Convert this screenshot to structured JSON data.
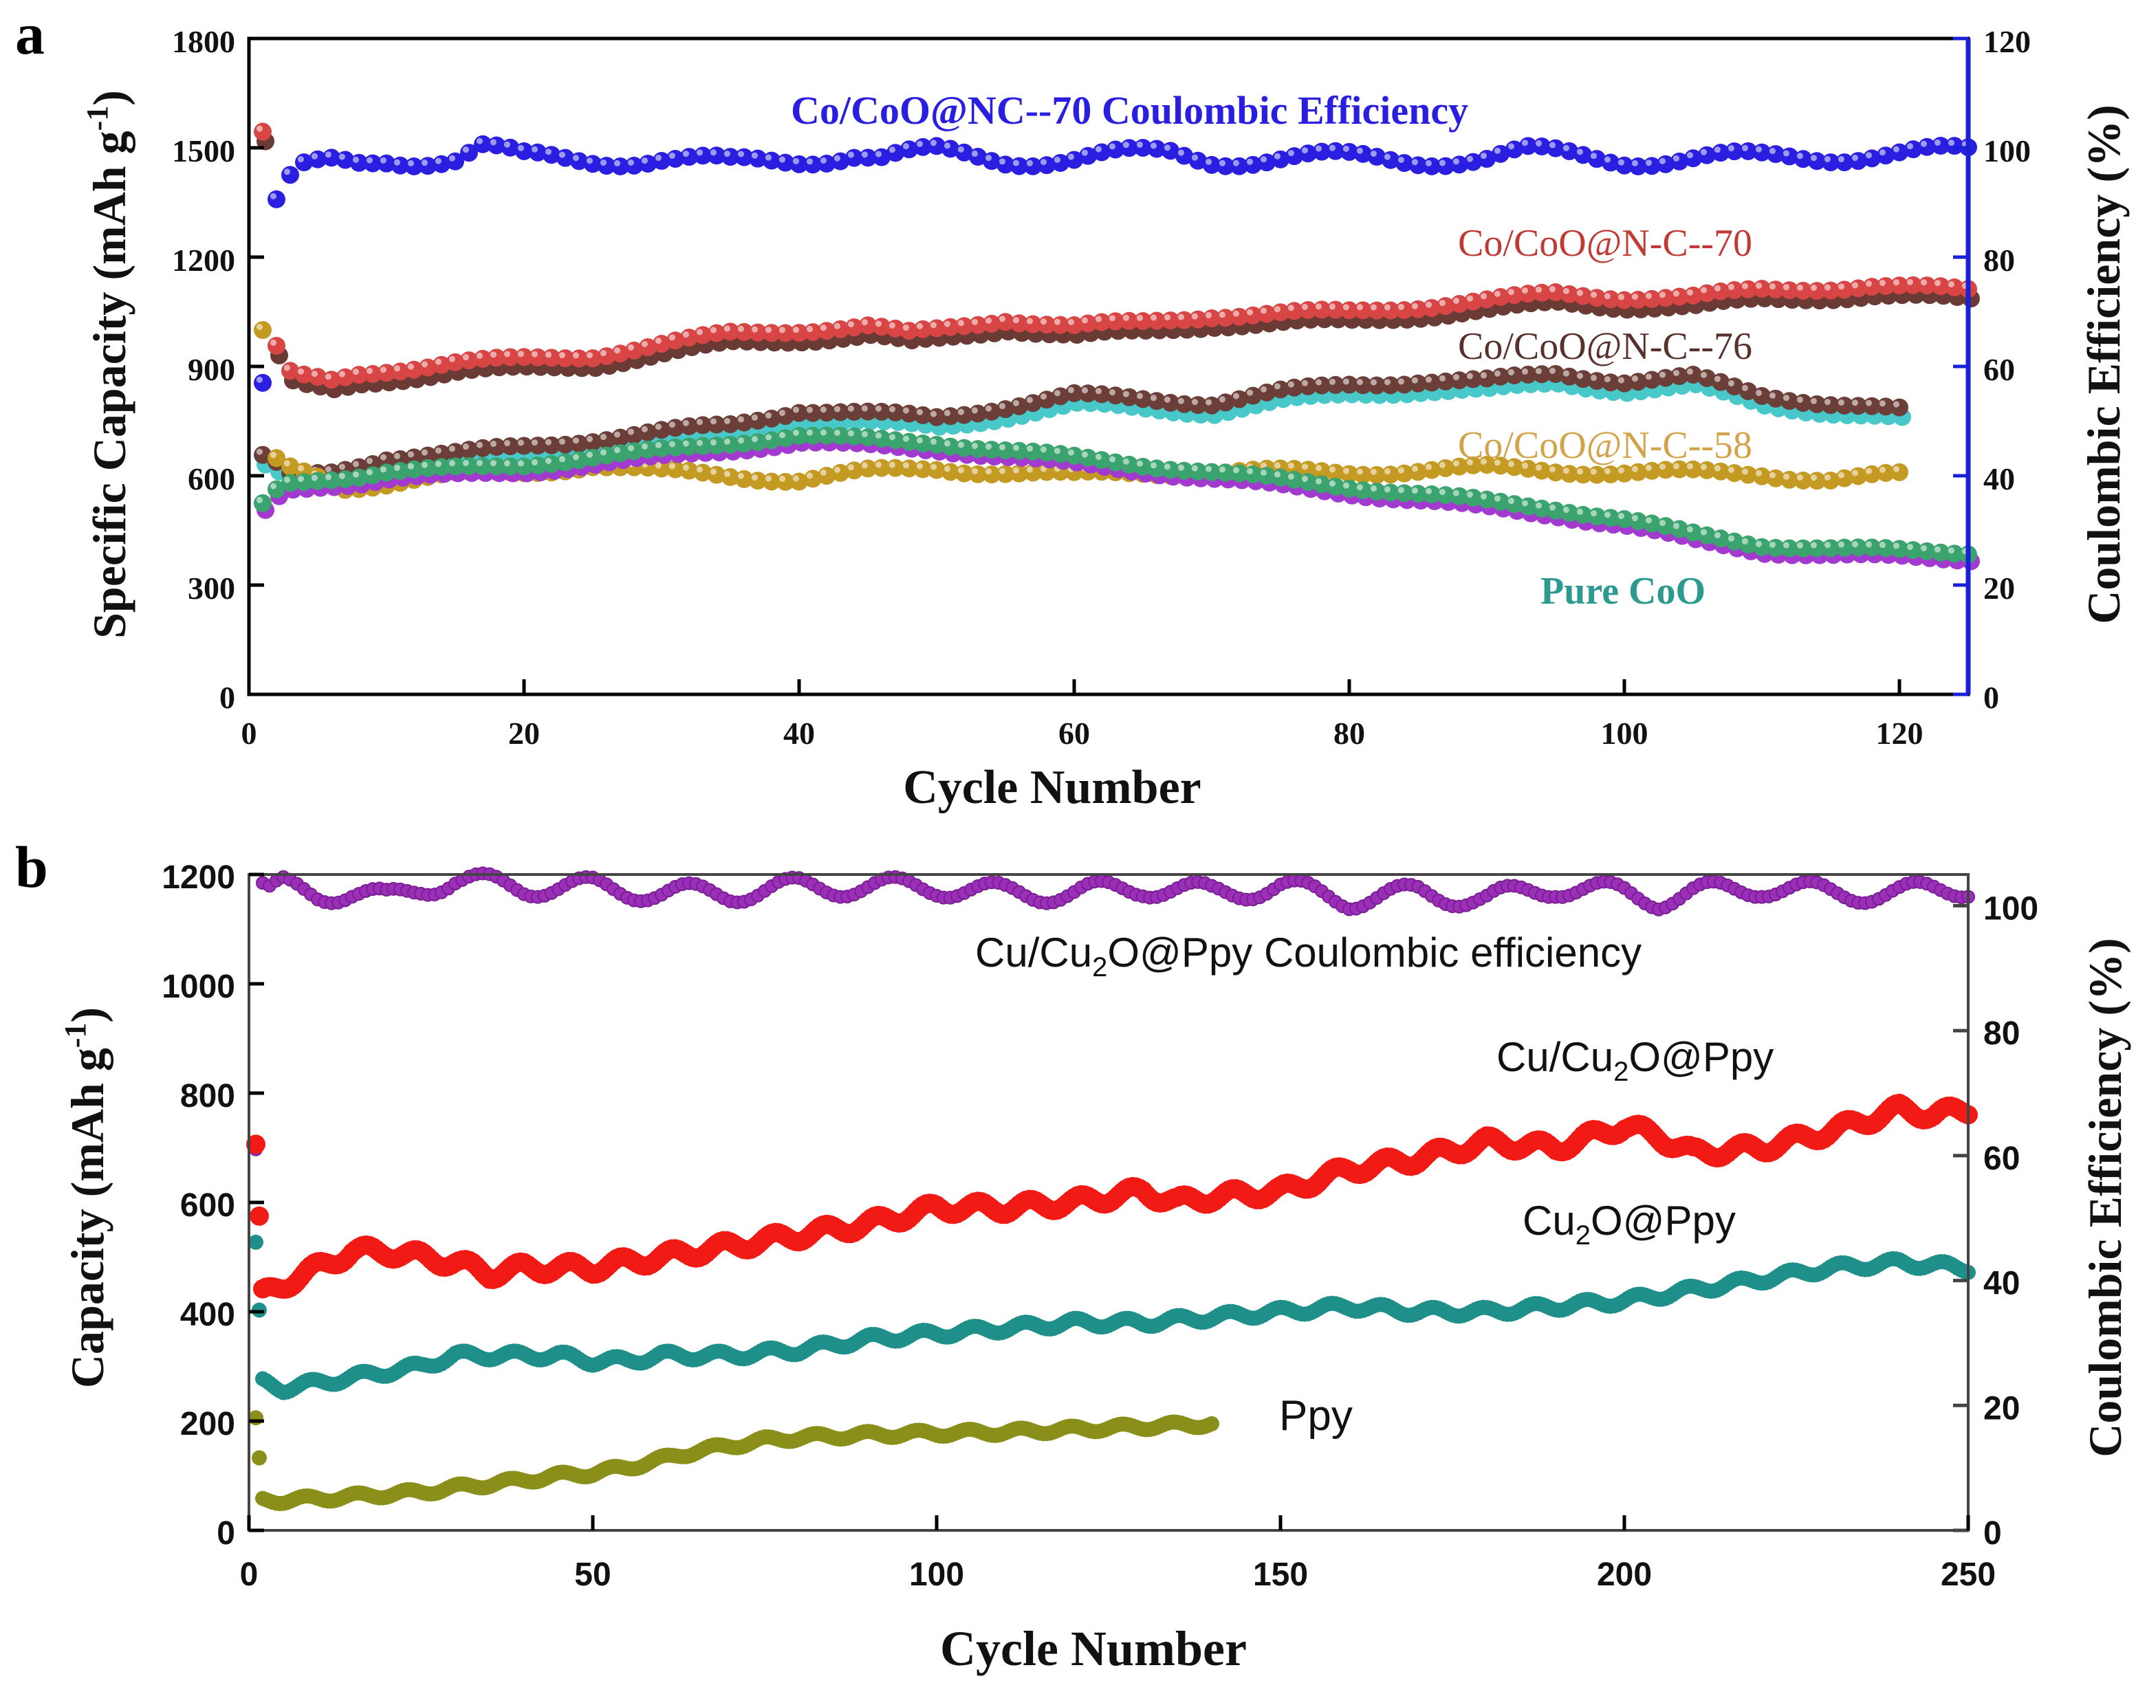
{
  "chart_data": [
    {
      "panel_label": "a",
      "type": "scatter",
      "xlabel": "Cycle Number",
      "ylabel_left": "Specific Capacity (mAh g",
      "ylabel_left_sup": "-1",
      "ylabel_left_end": ")",
      "ylabel_right": "Coulombic Efficiency (%)",
      "xlim": [
        0,
        125
      ],
      "ylim_left": [
        0,
        1800
      ],
      "ylim_right": [
        0,
        120
      ],
      "xticks": [
        0,
        20,
        40,
        60,
        80,
        100,
        120
      ],
      "xtick_labels": [
        "0",
        "20",
        "40",
        "60",
        "80",
        "100",
        "120"
      ],
      "yticks_left": [
        0,
        300,
        600,
        900,
        1200,
        1500,
        1800
      ],
      "ytick_labels_left": [
        "0",
        "300",
        "600",
        "900",
        "1200",
        "1500",
        "1800"
      ],
      "yticks_right": [
        0,
        20,
        40,
        60,
        80,
        100,
        120
      ],
      "ytick_labels_right": [
        "0",
        "20",
        "40",
        "60",
        "80",
        "100",
        "120"
      ],
      "annotations": {
        "ce": "Co/CoO@NC--70  Coulombic Efficiency",
        "s70": "Co/CoO@N-C--70",
        "s76": "Co/CoO@N-C--76",
        "s58": "Co/CoO@N-C--58",
        "pure": "Pure CoO"
      },
      "colors": {
        "ce": "#2a1fe0",
        "s70": "#d84545",
        "s70b": "#6a3a34",
        "s76": "#6b3e38",
        "s76b": "#48c8c8",
        "s58": "#c49a22",
        "pure": "#3aa36e",
        "pureb": "#a23ad0",
        "axis_right": "#1a20d8",
        "ann_ce": "#2a1fe0",
        "ann_70": "#c03a35",
        "ann_76": "#5a302c",
        "ann_58": "#d2a34a",
        "ann_pure": "#2c9a8e"
      },
      "series": [
        {
          "name": "Co/CoO@NC--70 Coulombic Efficiency",
          "axis": "right",
          "x": [
            1,
            2,
            3,
            4,
            6,
            8,
            10,
            15,
            17,
            20,
            25,
            30,
            35,
            40,
            44,
            46,
            50,
            55,
            60,
            67,
            70,
            80,
            90,
            93,
            100,
            110,
            118,
            125
          ],
          "y": [
            57,
            90,
            94,
            96,
            97,
            97,
            98,
            98,
            100,
            98,
            98,
            98,
            97,
            98,
            99,
            98,
            99,
            98,
            98,
            99,
            98,
            98,
            98,
            99,
            98,
            98,
            99,
            99
          ]
        },
        {
          "name": "Co/CoO@N-C--70",
          "axis": "left",
          "x": [
            1,
            2,
            3,
            4,
            6,
            8,
            10,
            15,
            20,
            25,
            30,
            35,
            40,
            45,
            48,
            50,
            55,
            60,
            65,
            70,
            80,
            90,
            95,
            100,
            105,
            110,
            118,
            125
          ],
          "y": [
            1540,
            950,
            880,
            870,
            860,
            880,
            890,
            910,
            920,
            930,
            960,
            990,
            1000,
            1010,
            990,
            1000,
            1030,
            1010,
            1020,
            1040,
            1050,
            1080,
            1100,
            1090,
            1090,
            1110,
            1120,
            1110
          ]
        },
        {
          "name": "Co/CoO@N-C--76",
          "axis": "left",
          "x": [
            1,
            2,
            3,
            4,
            6,
            8,
            10,
            15,
            20,
            25,
            30,
            35,
            40,
            45,
            50,
            55,
            60,
            65,
            70,
            75,
            80,
            85,
            90,
            95,
            100,
            105,
            110,
            115,
            120
          ],
          "y": [
            650,
            630,
            600,
            600,
            610,
            630,
            650,
            660,
            680,
            700,
            720,
            740,
            780,
            770,
            760,
            790,
            820,
            810,
            800,
            830,
            850,
            860,
            860,
            880,
            860,
            870,
            820,
            800,
            780
          ]
        },
        {
          "name": "Co/CoO@N-C--58",
          "axis": "left",
          "x": [
            1,
            2,
            3,
            5,
            7,
            10,
            15,
            20,
            25,
            30,
            35,
            40,
            45,
            50,
            55,
            60,
            65,
            70,
            80,
            90,
            100,
            110,
            115,
            120
          ],
          "y": [
            990,
            640,
            620,
            600,
            570,
            580,
            600,
            610,
            630,
            610,
            600,
            590,
            610,
            620,
            610,
            600,
            610,
            610,
            610,
            620,
            610,
            605,
            590,
            600
          ]
        },
        {
          "name": "Pure CoO",
          "axis": "left",
          "x": [
            1,
            2,
            3,
            5,
            8,
            10,
            15,
            20,
            25,
            30,
            35,
            40,
            45,
            50,
            55,
            60,
            65,
            70,
            75,
            80,
            85,
            90,
            95,
            100,
            105,
            110,
            115,
            120,
            125
          ],
          "y": [
            520,
            560,
            580,
            590,
            600,
            610,
            620,
            630,
            650,
            670,
            690,
            710,
            700,
            690,
            670,
            650,
            630,
            610,
            590,
            570,
            550,
            530,
            510,
            480,
            440,
            410,
            400,
            395,
            390
          ]
        }
      ]
    },
    {
      "panel_label": "b",
      "type": "scatter",
      "xlabel": "Cycle Number",
      "ylabel_left": "Capacity (mAh g",
      "ylabel_left_sup": "-1",
      "ylabel_left_end": ")",
      "ylabel_right": "Coulombic Efficiency (%)",
      "xlim": [
        0,
        250
      ],
      "ylim_left": [
        0,
        1200
      ],
      "ylim_right": [
        0,
        105
      ],
      "xticks": [
        0,
        50,
        100,
        150,
        200,
        250
      ],
      "xtick_labels": [
        "0",
        "50",
        "100",
        "150",
        "200",
        "250"
      ],
      "yticks_left": [
        0,
        200,
        400,
        600,
        800,
        1000,
        1200
      ],
      "ytick_labels_left": [
        "0",
        "200",
        "400",
        "600",
        "800",
        "1000",
        "1200"
      ],
      "yticks_right": [
        0,
        20,
        40,
        60,
        80,
        100
      ],
      "ytick_labels_right": [
        "0",
        "20",
        "40",
        "60",
        "80",
        "100"
      ],
      "annotations": {
        "ce_pre": "Cu/Cu",
        "ce_sub": "2",
        "ce_post": "O@Ppy  Coulombic efficiency",
        "cu_pre": "Cu/Cu",
        "cu_sub": "2",
        "cu_post": "O@Ppy",
        "cu2o_pre": "Cu",
        "cu2o_sub": "2",
        "cu2o_post": "O@Ppy",
        "ppy": "Ppy"
      },
      "colors": {
        "ce": "#9b2fb8",
        "cu": "#f21a14",
        "cu2o": "#1f8f8a",
        "ppy": "#8a8f1a"
      },
      "series": [
        {
          "name": "Cu/Cu2O@Ppy Coulombic efficiency",
          "axis": "right",
          "x": [
            1,
            2,
            3,
            5,
            10,
            15,
            20,
            25,
            30,
            40,
            50,
            60,
            70,
            80,
            90,
            100,
            110,
            120,
            130,
            140,
            150,
            160,
            170,
            180,
            190,
            200,
            205,
            210,
            220,
            230,
            240,
            250
          ],
          "y": [
            61,
            103,
            102,
            103,
            102,
            102,
            101,
            103,
            104,
            103,
            103,
            102,
            102,
            103,
            103,
            103,
            102,
            102,
            103,
            102,
            103,
            101,
            102,
            101,
            103,
            102,
            101,
            102,
            103,
            102,
            102,
            103
          ]
        },
        {
          "name": "Cu/Cu2O@Ppy",
          "axis": "left",
          "x": [
            1,
            2,
            5,
            10,
            15,
            20,
            25,
            30,
            35,
            40,
            45,
            50,
            55,
            60,
            70,
            80,
            90,
            100,
            110,
            120,
            130,
            135,
            140,
            150,
            160,
            170,
            180,
            190,
            200,
            205,
            210,
            220,
            230,
            240,
            245,
            250
          ],
          "y": [
            700,
            430,
            450,
            480,
            510,
            510,
            500,
            490,
            470,
            480,
            480,
            480,
            490,
            500,
            520,
            540,
            560,
            590,
            590,
            600,
            620,
            600,
            610,
            620,
            660,
            680,
            710,
            700,
            740,
            720,
            690,
            700,
            730,
            770,
            760,
            770
          ]
        },
        {
          "name": "Cu2O@Ppy",
          "axis": "left",
          "x": [
            1,
            2,
            5,
            10,
            15,
            20,
            25,
            30,
            35,
            40,
            45,
            50,
            55,
            60,
            70,
            80,
            90,
            100,
            110,
            120,
            130,
            140,
            150,
            160,
            170,
            180,
            190,
            200,
            210,
            220,
            230,
            240,
            250
          ],
          "y": [
            520,
            270,
            260,
            270,
            280,
            290,
            300,
            320,
            320,
            320,
            320,
            310,
            310,
            320,
            320,
            330,
            350,
            360,
            370,
            380,
            380,
            390,
            400,
            410,
            400,
            400,
            410,
            420,
            440,
            460,
            480,
            490,
            480
          ]
        },
        {
          "name": "Ppy",
          "axis": "left",
          "x": [
            1,
            2,
            5,
            10,
            15,
            20,
            25,
            30,
            35,
            40,
            45,
            50,
            55,
            60,
            65,
            70,
            75,
            80,
            90,
            100,
            110,
            120,
            130,
            140
          ],
          "y": [
            200,
            55,
            55,
            58,
            62,
            66,
            70,
            78,
            85,
            92,
            100,
            105,
            115,
            130,
            145,
            155,
            165,
            170,
            175,
            178,
            180,
            185,
            190,
            195
          ]
        }
      ]
    }
  ]
}
